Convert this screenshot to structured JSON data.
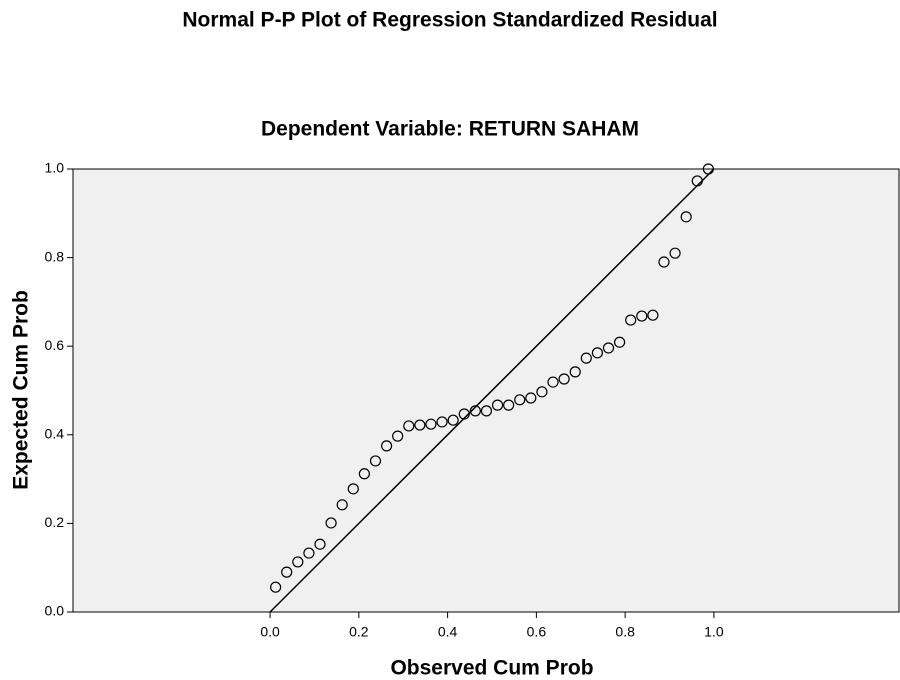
{
  "chart_data": {
    "type": "scatter",
    "title": "Normal P-P Plot of Regression Standardized Residual",
    "subtitle": "Dependent Variable: RETURN SAHAM",
    "x_label": "Observed Cum Prob",
    "y_label": "Expected Cum Prob",
    "x": [
      0.0125,
      0.0375,
      0.0625,
      0.0875,
      0.1125,
      0.1375,
      0.1625,
      0.1875,
      0.2125,
      0.2375,
      0.2625,
      0.2875,
      0.3125,
      0.3375,
      0.3625,
      0.3875,
      0.4125,
      0.4375,
      0.4625,
      0.4875,
      0.5125,
      0.5375,
      0.5625,
      0.5875,
      0.6125,
      0.6375,
      0.6625,
      0.6875,
      0.7125,
      0.7375,
      0.7625,
      0.7875,
      0.8125,
      0.8375,
      0.8625,
      0.8875,
      0.9125,
      0.9375,
      0.9625,
      0.9875
    ],
    "values": [
      0.056,
      0.09,
      0.113,
      0.133,
      0.153,
      0.201,
      0.242,
      0.278,
      0.312,
      0.341,
      0.375,
      0.397,
      0.42,
      0.422,
      0.424,
      0.429,
      0.433,
      0.447,
      0.454,
      0.454,
      0.467,
      0.467,
      0.479,
      0.483,
      0.497,
      0.519,
      0.526,
      0.542,
      0.573,
      0.585,
      0.596,
      0.609,
      0.659,
      0.668,
      0.67,
      0.79,
      0.81,
      0.892,
      0.973,
      1.0
    ],
    "color": "#000000",
    "xlim": [
      -0.444,
      1.417
    ],
    "ylim": [
      0,
      1
    ],
    "xticks": [
      {
        "value": 0,
        "label": "0.0"
      },
      {
        "value": 0.2,
        "label": "0.2"
      },
      {
        "value": 0.4,
        "label": "0.4"
      },
      {
        "value": 0.6,
        "label": "0.6"
      },
      {
        "value": 0.8,
        "label": "0.8"
      },
      {
        "value": 1,
        "label": "1.0"
      }
    ],
    "yticks": [
      {
        "value": 0,
        "label": "0.0"
      },
      {
        "value": 0.2,
        "label": "0.2"
      },
      {
        "value": 0.4,
        "label": "0.4"
      },
      {
        "value": 0.6,
        "label": "0.6"
      },
      {
        "value": 0.8,
        "label": "0.8"
      },
      {
        "value": 1,
        "label": "1.0"
      }
    ]
  }
}
